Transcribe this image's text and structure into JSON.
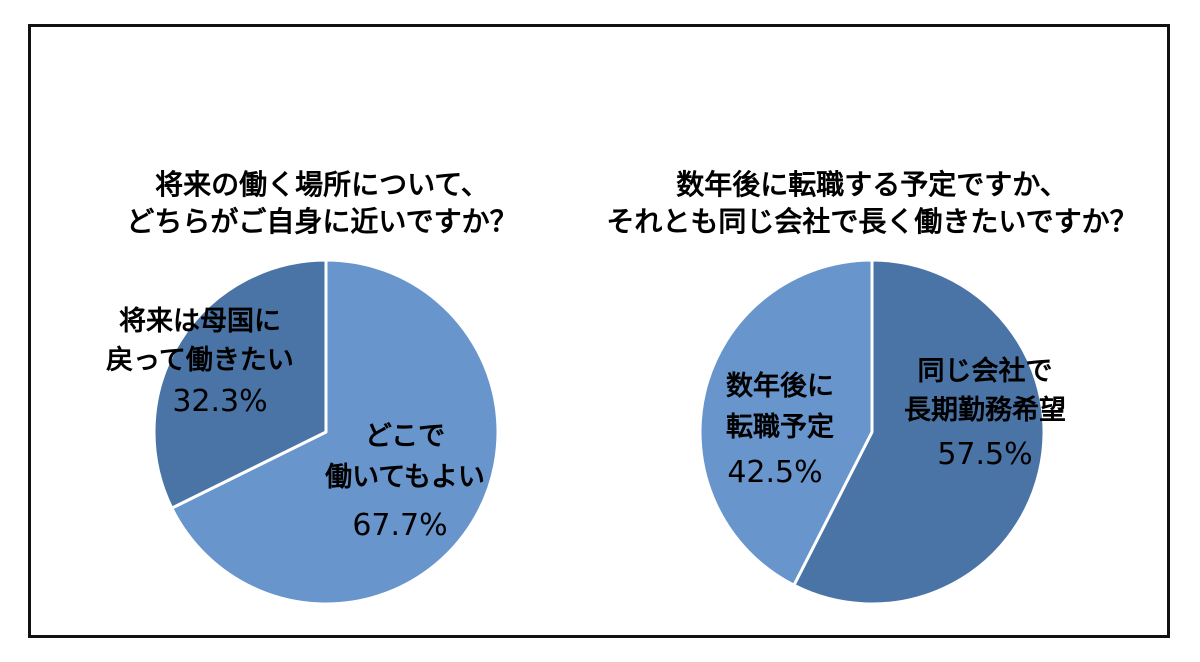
{
  "chart_data": [
    {
      "type": "pie",
      "title_lines": [
        "将来の働く場所について、",
        "どちらがご自身に近いですか？"
      ],
      "slices": [
        {
          "label_lines": [
            "将来は母国に",
            "戻って働きたい"
          ],
          "value": 32.3,
          "value_label": "32.3%",
          "color": "#4a73a6"
        },
        {
          "label_lines": [
            "どこで",
            "働いてもよい"
          ],
          "value": 67.7,
          "value_label": "67.7%",
          "color": "#6795cc"
        }
      ]
    },
    {
      "type": "pie",
      "title_lines": [
        "数年後に転職する予定ですか、",
        "それとも同じ会社で長く働きたいですか？"
      ],
      "slices": [
        {
          "label_lines": [
            "同じ会社で",
            "長期勤務希望"
          ],
          "value": 57.5,
          "value_label": "57.5%",
          "color": "#4a73a6"
        },
        {
          "label_lines": [
            "数年後に",
            "転職予定"
          ],
          "value": 42.5,
          "value_label": "42.5%",
          "color": "#6795cc"
        }
      ]
    }
  ]
}
